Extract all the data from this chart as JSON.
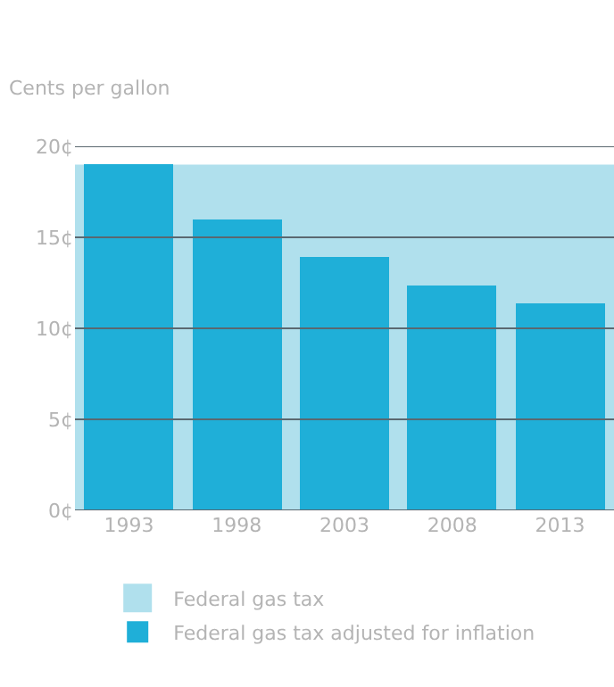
{
  "chart_data": {
    "type": "bar",
    "ylabel": "Cents per gallon",
    "categories": [
      "1993",
      "1998",
      "2003",
      "2008",
      "2013"
    ],
    "series": [
      {
        "name": "Federal gas tax adjusted for inflation",
        "color": "#1fafd8",
        "values": [
          19,
          16,
          13.9,
          12.4,
          11.4
        ]
      }
    ],
    "bands": [
      {
        "axis": "y",
        "from": 0,
        "to": 19,
        "label": "Federal gas tax",
        "color": "#b0e0ed"
      }
    ],
    "ylim": [
      0,
      20
    ],
    "yticks": [
      {
        "value": 0,
        "label": "0¢"
      },
      {
        "value": 5,
        "label": "5¢"
      },
      {
        "value": 10,
        "label": "10¢"
      },
      {
        "value": 15,
        "label": "15¢"
      },
      {
        "value": 20,
        "label": "20¢"
      }
    ],
    "grid": "y",
    "legend": "bottom"
  }
}
